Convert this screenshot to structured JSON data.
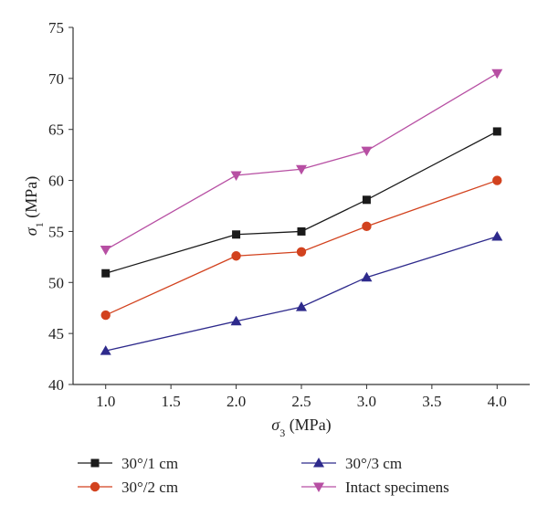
{
  "chart_data": {
    "type": "line",
    "title": "",
    "xlabel": {
      "symbol": "σ",
      "sub": "3",
      "unit": " (MPa)"
    },
    "ylabel": {
      "symbol": "σ",
      "sub": "1",
      "unit": " (MPa)"
    },
    "xlim": [
      0.75,
      4.25
    ],
    "ylim": [
      40,
      75
    ],
    "xticks": [
      "1.0",
      "1.5",
      "2.0",
      "2.5",
      "3.0",
      "3.5",
      "4.0"
    ],
    "yticks": [
      "40",
      "45",
      "50",
      "55",
      "60",
      "65",
      "70",
      "75"
    ],
    "x": [
      1.0,
      2.0,
      2.5,
      3.0,
      4.0
    ],
    "grid": false,
    "legend_position": "bottom",
    "series": [
      {
        "name": "30°/1 cm",
        "values": [
          50.9,
          54.7,
          55.0,
          58.1,
          64.8
        ],
        "color": "#1a1a1a",
        "marker": "square"
      },
      {
        "name": "30°/2 cm",
        "values": [
          46.8,
          52.6,
          53.0,
          55.5,
          60.0
        ],
        "color": "#d2421e",
        "marker": "circle"
      },
      {
        "name": "30°/3 cm",
        "values": [
          43.3,
          46.2,
          47.6,
          50.5,
          54.5
        ],
        "color": "#2e2a8c",
        "marker": "triangle-up"
      },
      {
        "name": "Intact specimens",
        "values": [
          53.2,
          60.5,
          61.1,
          62.9,
          70.5
        ],
        "color": "#b74fa3",
        "marker": "triangle-down"
      }
    ]
  }
}
